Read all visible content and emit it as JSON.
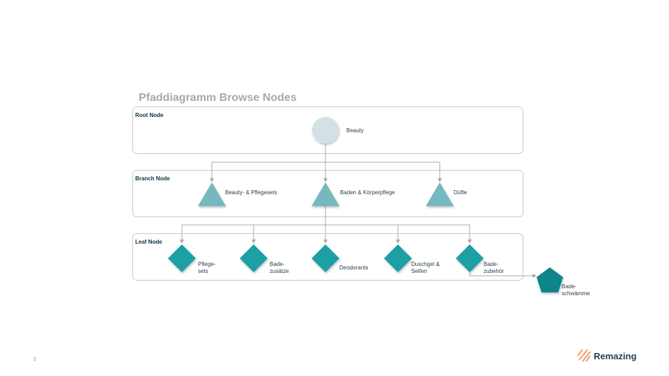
{
  "title": "Pfaddiagramm Browse Nodes",
  "page_number": "2",
  "brand": "Remazing",
  "colors": {
    "root": "#d3e1e4",
    "branch": "#74b8bf",
    "leaf": "#1fa0a3",
    "extra": "#0e8589",
    "accent": "#f6a071",
    "text": "#0f3040"
  },
  "sections": {
    "root": "Root Node",
    "branch": "Branch Node",
    "leaf": "Leaf Node"
  },
  "root": {
    "label": "Beauty"
  },
  "branches": [
    {
      "label": "Beauty- & Pflegesets"
    },
    {
      "label": "Baden & Körperpflege"
    },
    {
      "label": "Düfte"
    }
  ],
  "leaves": [
    {
      "line1": "Pflege-",
      "line2": "sets"
    },
    {
      "line1": "Bade-",
      "line2": "zusätze"
    },
    {
      "line1": "Deodorants",
      "line2": ""
    },
    {
      "line1": "Duschgel &",
      "line2": "Seifen"
    },
    {
      "line1": "Bade-",
      "line2": "zubehör"
    }
  ],
  "extra": {
    "line1": "Bade-",
    "line2": "schwämme"
  }
}
